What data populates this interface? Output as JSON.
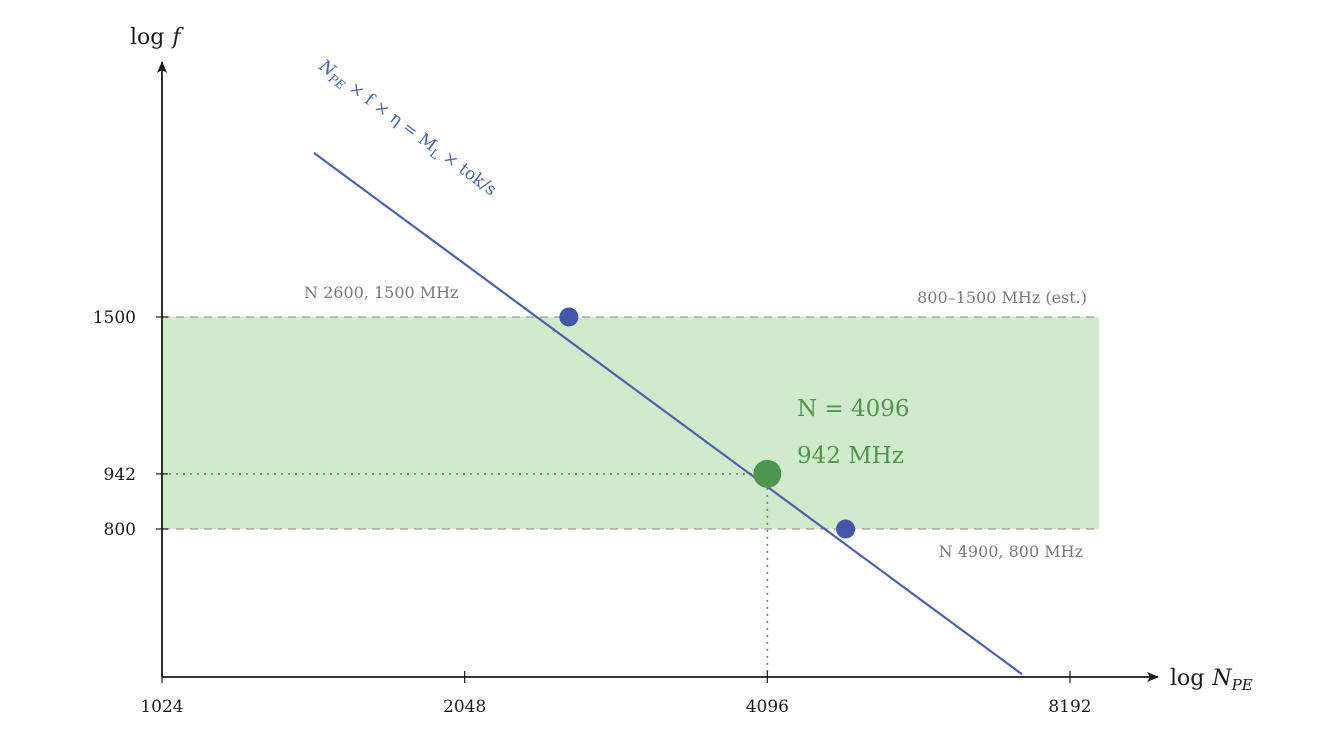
{
  "chart_data": {
    "type": "line",
    "x_scale": "log2",
    "y_scale": "log",
    "xlim": [
      1024,
      8192
    ],
    "ylim": [
      520,
      2600
    ],
    "x_ticks": [
      "1024",
      "2048",
      "4096",
      "8192"
    ],
    "y_ticks": [
      "800",
      "942",
      "1500"
    ],
    "xlabel": "log N_PE",
    "ylabel": "log f",
    "series": [
      {
        "name": "N_PE × f × η = M_L × tok/s",
        "x": [
          1450,
          7340
        ],
        "y": [
          2440,
          520
        ]
      }
    ],
    "points": [
      {
        "x": 2600,
        "y": 1500,
        "label": "N 2600, 1500 MHz"
      },
      {
        "x": 4096,
        "y": 942,
        "label": "N = 4096 | 942 MHz"
      },
      {
        "x": 4900,
        "y": 800,
        "label": "N 4900, 800 MHz"
      }
    ],
    "band": {
      "y_min": 800,
      "y_max": 1500,
      "label": "800–1500 MHz (est.)"
    },
    "highlight": {
      "x": 4096,
      "y": 942,
      "x_label": "N = 4096",
      "y_label": "942 MHz",
      "tick_label": "942"
    },
    "grid": false,
    "legend": "none"
  },
  "colors": {
    "line": "#4a62ad",
    "point_blue": "#4356a8",
    "point_green": "#4f9550",
    "band": "#d0ebcc",
    "band_edge": "#9a9a9a",
    "axis": "#1a1a1a",
    "note": "#7a7a7a",
    "green_text": "#4f9550"
  },
  "labels": {
    "x_axis_main": "log",
    "x_axis_var": "N",
    "x_axis_sub": "PE",
    "y_axis_main": "log",
    "y_axis_var": "f",
    "line_eq": "N_PE × f × η = M_L × tok/s",
    "line_eq_N": "N",
    "line_eq_N_sub": "PE",
    "line_eq_mid": " × f × η = M",
    "line_eq_M_sub": "L",
    "line_eq_end": " × tok/s",
    "band_label": "800–1500 MHz (est.)",
    "point_top_label": "N 2600, 1500 MHz",
    "point_bottom_label": "N 4900, 800 MHz",
    "highlight_n": "N = 4096",
    "highlight_f": "942 MHz"
  }
}
